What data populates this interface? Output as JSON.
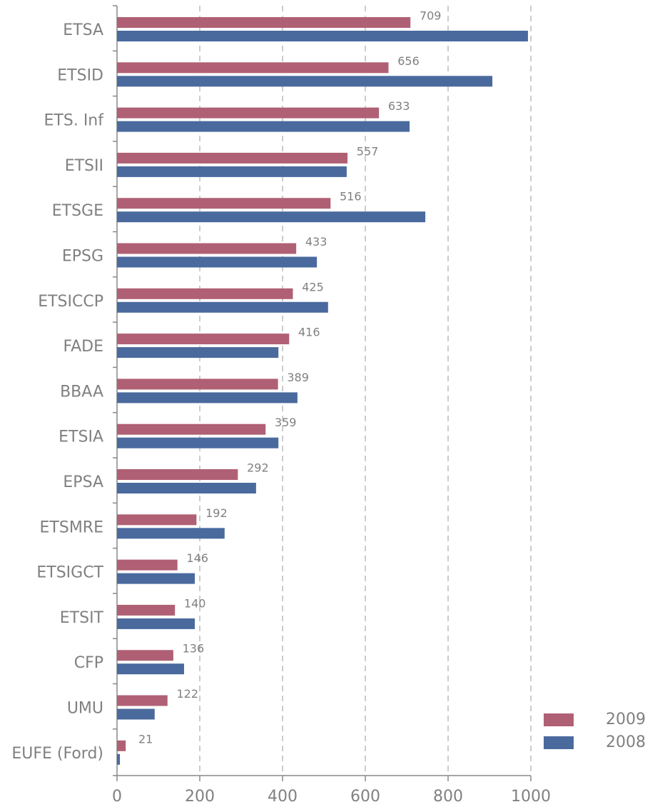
{
  "chart_data": {
    "type": "bar",
    "orientation": "horizontal",
    "categories": [
      "ETSA",
      "ETSID",
      "ETS. Inf",
      "ETSII",
      "ETSGE",
      "EPSG",
      "ETSICCP",
      "FADE",
      "BBAA",
      "ETSIA",
      "EPSA",
      "ETSMRE",
      "ETSIGCT",
      "ETSIT",
      "CFP",
      "UMU",
      "EUFE (Ford)"
    ],
    "series": [
      {
        "name": "2009",
        "color": "#b06074",
        "values": [
          709,
          656,
          633,
          557,
          516,
          433,
          425,
          416,
          389,
          359,
          292,
          192,
          146,
          140,
          136,
          122,
          21
        ],
        "labels_shown": true
      },
      {
        "name": "2008",
        "color": "#4a6a9e",
        "values": [
          993,
          907,
          707,
          555,
          745,
          483,
          510,
          390,
          436,
          390,
          336,
          260,
          188,
          188,
          162,
          91,
          7
        ],
        "labels_shown": false
      }
    ],
    "xlim": [
      0,
      1000
    ],
    "xticks": [
      0,
      200,
      400,
      600,
      800,
      1000
    ],
    "grid": true,
    "legend": "lower right"
  }
}
